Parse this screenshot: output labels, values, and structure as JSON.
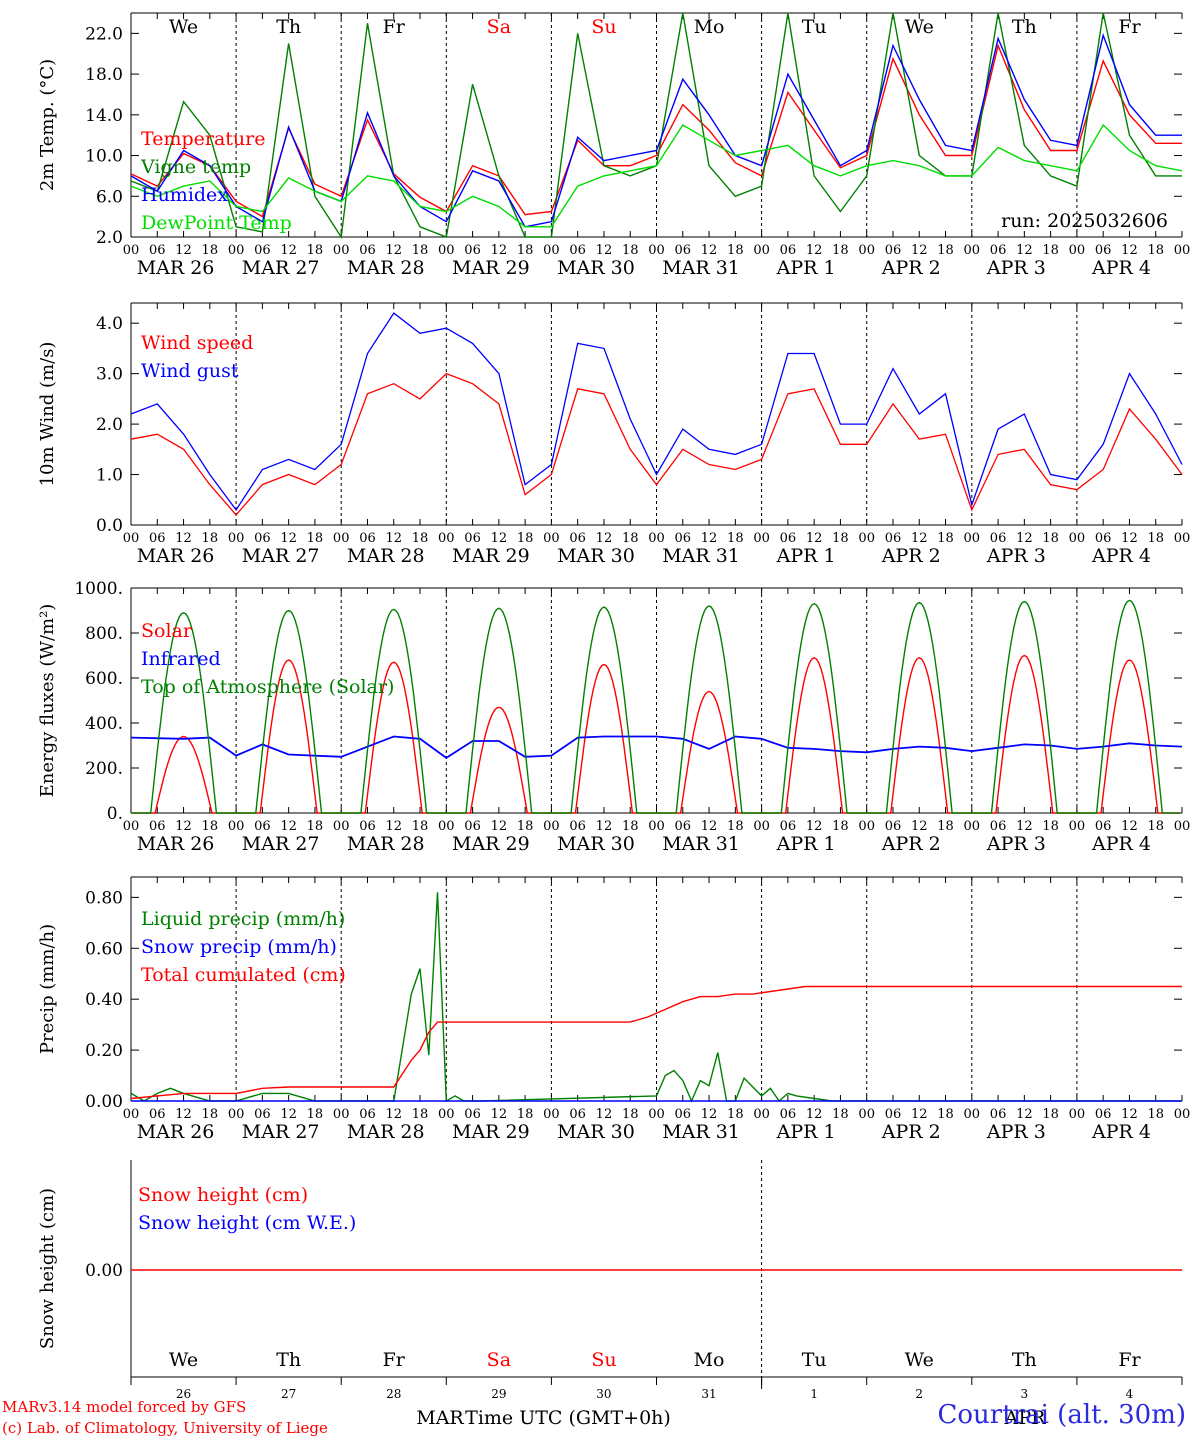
{
  "run_label": "run: 2025032606",
  "hour_ticks": [
    "00",
    "06",
    "12",
    "18"
  ],
  "date_labels": [
    "MAR 26",
    "MAR 27",
    "MAR 28",
    "MAR 29",
    "MAR 30",
    "MAR 31",
    "APR  1",
    "APR  2",
    "APR  3",
    "APR  4"
  ],
  "weekdays": [
    {
      "label": "We",
      "color": "#000000"
    },
    {
      "label": "Th",
      "color": "#000000"
    },
    {
      "label": "Fr",
      "color": "#000000"
    },
    {
      "label": "Sa",
      "color": "#ff0000"
    },
    {
      "label": "Su",
      "color": "#ff0000"
    },
    {
      "label": "Mo",
      "color": "#000000"
    },
    {
      "label": "Tu",
      "color": "#000000"
    },
    {
      "label": "We",
      "color": "#000000"
    },
    {
      "label": "Th",
      "color": "#000000"
    },
    {
      "label": "Fr",
      "color": "#000000"
    }
  ],
  "snow_day_numbers": [
    "26",
    "27",
    "28",
    "29",
    "30",
    "31",
    "1",
    "2",
    "3",
    "4"
  ],
  "snow_month_label_1": "MAR",
  "snow_month_label_2": "APR",
  "xlabel": "Time UTC (GMT+0h)",
  "footer": {
    "model": "MARv3.14 model forced by GFS",
    "lab": "(c) Lab. of Climatology, University of Liege",
    "station": "Courtrai (alt. 30m)"
  },
  "colors": {
    "red": "#ff0000",
    "blue": "#0000ff",
    "green": "#008000",
    "lightgreen": "#00dd00"
  },
  "chart_data": [
    {
      "type": "line",
      "ylabel": "2m Temp. (°C)",
      "ylim": [
        2,
        24
      ],
      "yticks": [
        "2.0",
        "6.0",
        "10.0",
        "14.0",
        "18.0",
        "22.0"
      ],
      "x_unit": "hours since MAR 26 00 UTC",
      "series": [
        {
          "name": "Temperature",
          "color": "#ff0000",
          "x": [
            0,
            6,
            12,
            18,
            24,
            30,
            36,
            42,
            48,
            54,
            60,
            66,
            72,
            78,
            84,
            90,
            96,
            102,
            108,
            114,
            120,
            126,
            132,
            138,
            144,
            150,
            156,
            162,
            168,
            174,
            180,
            186,
            192,
            198,
            204,
            210,
            216,
            222,
            228,
            234,
            240
          ],
          "y": [
            8.2,
            7.0,
            10.2,
            9.0,
            5.5,
            4.0,
            12.7,
            7.2,
            6.0,
            13.5,
            8.2,
            5.9,
            4.5,
            9.0,
            8.0,
            4.2,
            4.5,
            11.5,
            9.0,
            9.0,
            10.0,
            15.0,
            12.5,
            9.3,
            8.0,
            16.2,
            12.5,
            8.8,
            10.0,
            19.5,
            14.0,
            10.0,
            10.0,
            20.8,
            14.5,
            10.5,
            10.5,
            19.3,
            14.0,
            11.2,
            11.2
          ]
        },
        {
          "name": "Vigne temp",
          "color": "#008000",
          "x": [
            0,
            6,
            12,
            18,
            24,
            30,
            36,
            42,
            48,
            54,
            60,
            66,
            72,
            78,
            84,
            90,
            96,
            102,
            108,
            114,
            120,
            126,
            132,
            138,
            144,
            150,
            156,
            162,
            168,
            174,
            180,
            186,
            192,
            198,
            204,
            210,
            216,
            222,
            228,
            234,
            240
          ],
          "y": [
            7.5,
            6.5,
            15.3,
            12.0,
            3.0,
            2.5,
            21.0,
            6.0,
            2.0,
            23.0,
            8.0,
            3.0,
            2.0,
            17.0,
            8.0,
            2.0,
            2.0,
            22.0,
            9.0,
            8.0,
            9.0,
            24.0,
            9.0,
            6.0,
            7.0,
            24.0,
            8.0,
            4.5,
            8.0,
            24.0,
            10.0,
            8.0,
            8.0,
            24.0,
            11.0,
            8.0,
            7.0,
            24.0,
            12.0,
            8.0,
            8.0
          ]
        },
        {
          "name": "Humidex",
          "color": "#0000ff",
          "x": [
            0,
            6,
            12,
            18,
            24,
            30,
            36,
            42,
            48,
            54,
            60,
            66,
            72,
            78,
            84,
            90,
            96,
            102,
            108,
            114,
            120,
            126,
            132,
            138,
            144,
            150,
            156,
            162,
            168,
            174,
            180,
            186,
            192,
            198,
            204,
            210,
            216,
            222,
            228,
            234,
            240
          ],
          "y": [
            8.0,
            6.5,
            10.5,
            9.0,
            5.0,
            3.5,
            12.8,
            6.5,
            5.5,
            14.2,
            8.0,
            5.0,
            3.5,
            8.5,
            7.5,
            3.0,
            3.5,
            11.8,
            9.5,
            10.0,
            10.5,
            17.5,
            14.0,
            10.0,
            9.0,
            18.0,
            13.5,
            9.0,
            10.5,
            20.8,
            15.5,
            11.0,
            10.5,
            21.5,
            15.5,
            11.5,
            11.0,
            21.8,
            15.0,
            12.0,
            12.0
          ]
        },
        {
          "name": "DewPoint Temp",
          "color": "#00dd00",
          "x": [
            0,
            6,
            12,
            18,
            24,
            30,
            36,
            42,
            48,
            54,
            60,
            66,
            72,
            78,
            84,
            90,
            96,
            102,
            108,
            114,
            120,
            126,
            132,
            138,
            144,
            150,
            156,
            162,
            168,
            174,
            180,
            186,
            192,
            198,
            204,
            210,
            216,
            222,
            228,
            234,
            240
          ],
          "y": [
            7.0,
            6.0,
            7.0,
            7.5,
            5.0,
            4.5,
            7.8,
            6.5,
            5.5,
            8.0,
            7.5,
            5.0,
            4.5,
            6.0,
            5.0,
            3.0,
            3.0,
            7.0,
            8.0,
            8.5,
            9.0,
            13.0,
            11.5,
            10.0,
            10.5,
            11.0,
            9.0,
            8.0,
            9.0,
            9.5,
            9.0,
            8.0,
            8.0,
            10.8,
            9.5,
            9.0,
            8.5,
            13.0,
            10.5,
            9.0,
            8.5
          ]
        }
      ]
    },
    {
      "type": "line",
      "ylabel": "10m Wind (m/s)",
      "ylim": [
        0,
        4.4
      ],
      "yticks": [
        "0.0",
        "1.0",
        "2.0",
        "3.0",
        "4.0"
      ],
      "series": [
        {
          "name": "Wind speed",
          "color": "#ff0000",
          "x": [
            0,
            6,
            12,
            18,
            24,
            30,
            36,
            42,
            48,
            54,
            60,
            66,
            72,
            78,
            84,
            90,
            96,
            102,
            108,
            114,
            120,
            126,
            132,
            138,
            144,
            150,
            156,
            162,
            168,
            174,
            180,
            186,
            192,
            198,
            204,
            210,
            216,
            222,
            228,
            234,
            240
          ],
          "y": [
            1.7,
            1.8,
            1.5,
            0.8,
            0.2,
            0.8,
            1.0,
            0.8,
            1.2,
            2.6,
            2.8,
            2.5,
            3.0,
            2.8,
            2.4,
            0.6,
            1.0,
            2.7,
            2.6,
            1.5,
            0.8,
            1.5,
            1.2,
            1.1,
            1.3,
            2.6,
            2.7,
            1.6,
            1.6,
            2.4,
            1.7,
            1.8,
            0.3,
            1.4,
            1.5,
            0.8,
            0.7,
            1.1,
            2.3,
            1.7,
            1.0
          ]
        },
        {
          "name": "Wind gust",
          "color": "#0000ff",
          "x": [
            0,
            6,
            12,
            18,
            24,
            30,
            36,
            42,
            48,
            54,
            60,
            66,
            72,
            78,
            84,
            90,
            96,
            102,
            108,
            114,
            120,
            126,
            132,
            138,
            144,
            150,
            156,
            162,
            168,
            174,
            180,
            186,
            192,
            198,
            204,
            210,
            216,
            222,
            228,
            234,
            240
          ],
          "y": [
            2.2,
            2.4,
            1.8,
            1.0,
            0.3,
            1.1,
            1.3,
            1.1,
            1.6,
            3.4,
            4.2,
            3.8,
            3.9,
            3.6,
            3.0,
            0.8,
            1.2,
            3.6,
            3.5,
            2.1,
            1.0,
            1.9,
            1.5,
            1.4,
            1.6,
            3.4,
            3.4,
            2.0,
            2.0,
            3.1,
            2.2,
            2.6,
            0.4,
            1.9,
            2.2,
            1.0,
            0.9,
            1.6,
            3.0,
            2.2,
            1.2
          ]
        }
      ]
    },
    {
      "type": "line",
      "ylabel": "Energy fluxes (W/m²)",
      "ylim": [
        0,
        1000
      ],
      "yticks": [
        "0.",
        "200.",
        "400.",
        "600.",
        "800.",
        "1000."
      ],
      "series": [
        {
          "name": "Solar",
          "color": "#ff0000",
          "peaks": [
            340,
            680,
            670,
            470,
            660,
            540,
            690,
            690,
            700,
            680
          ]
        },
        {
          "name": "Infrared",
          "color": "#0000ff",
          "x": [
            0,
            12,
            18,
            24,
            30,
            36,
            48,
            60,
            66,
            72,
            78,
            84,
            90,
            96,
            102,
            108,
            114,
            120,
            126,
            132,
            138,
            144,
            150,
            156,
            162,
            168,
            174,
            180,
            186,
            192,
            198,
            204,
            210,
            216,
            222,
            228,
            234,
            240
          ],
          "y": [
            335,
            330,
            335,
            255,
            305,
            260,
            250,
            340,
            330,
            245,
            320,
            320,
            250,
            255,
            335,
            340,
            340,
            340,
            330,
            285,
            340,
            330,
            290,
            285,
            275,
            270,
            285,
            295,
            290,
            275,
            290,
            305,
            300,
            285,
            295,
            310,
            300,
            295
          ]
        },
        {
          "name": "Top of Atmosphere (Solar)",
          "color": "#008000",
          "peaks": [
            890,
            900,
            905,
            910,
            915,
            920,
            930,
            935,
            940,
            945
          ]
        }
      ]
    },
    {
      "type": "line",
      "ylabel": "Precip (mm/h)",
      "ylim": [
        0,
        0.88
      ],
      "yticks": [
        "0.00",
        "0.20",
        "0.40",
        "0.60",
        "0.80"
      ],
      "series": [
        {
          "name": "Liquid precip (mm/h)",
          "color": "#008000",
          "x": [
            0,
            3,
            6,
            9,
            12,
            18,
            24,
            30,
            36,
            42,
            48,
            60,
            64,
            66,
            68,
            70,
            72,
            74,
            76,
            80,
            120,
            122,
            124,
            126,
            128,
            130,
            132,
            134,
            136,
            138,
            140,
            144,
            146,
            148,
            150,
            152,
            160,
            240
          ],
          "y": [
            0.03,
            0.0,
            0.03,
            0.05,
            0.03,
            0.0,
            0.0,
            0.03,
            0.03,
            0.0,
            0.0,
            0.0,
            0.42,
            0.52,
            0.18,
            0.82,
            0.0,
            0.02,
            0.0,
            0.0,
            0.02,
            0.1,
            0.12,
            0.08,
            0.0,
            0.08,
            0.06,
            0.19,
            0.0,
            0.0,
            0.09,
            0.02,
            0.05,
            0.0,
            0.03,
            0.02,
            0.0,
            0.0
          ]
        },
        {
          "name": "Snow precip (mm/h)",
          "color": "#0000ff",
          "x": [
            0,
            240
          ],
          "y": [
            0.0,
            0.0
          ]
        },
        {
          "name": "Total cumulated (cm)",
          "color": "#ff0000",
          "x": [
            0,
            6,
            12,
            18,
            24,
            30,
            36,
            48,
            60,
            64,
            66,
            68,
            70,
            72,
            96,
            108,
            114,
            118,
            122,
            126,
            130,
            134,
            138,
            142,
            146,
            150,
            154,
            160,
            240
          ],
          "y": [
            0.01,
            0.02,
            0.03,
            0.03,
            0.03,
            0.05,
            0.055,
            0.055,
            0.055,
            0.16,
            0.2,
            0.27,
            0.31,
            0.31,
            0.31,
            0.31,
            0.31,
            0.33,
            0.36,
            0.39,
            0.41,
            0.41,
            0.42,
            0.42,
            0.43,
            0.44,
            0.45,
            0.45,
            0.45
          ]
        }
      ]
    },
    {
      "type": "line",
      "ylabel": "Snow height (cm)",
      "yticks": [
        "0.00"
      ],
      "series": [
        {
          "name": "Snow height (cm)",
          "color": "#ff0000",
          "x": [
            0,
            240
          ],
          "y": [
            0,
            0
          ]
        },
        {
          "name": "Snow height (cm W.E.)",
          "color": "#0000ff",
          "x": [
            0,
            240
          ],
          "y": [
            0,
            0
          ]
        }
      ]
    }
  ]
}
